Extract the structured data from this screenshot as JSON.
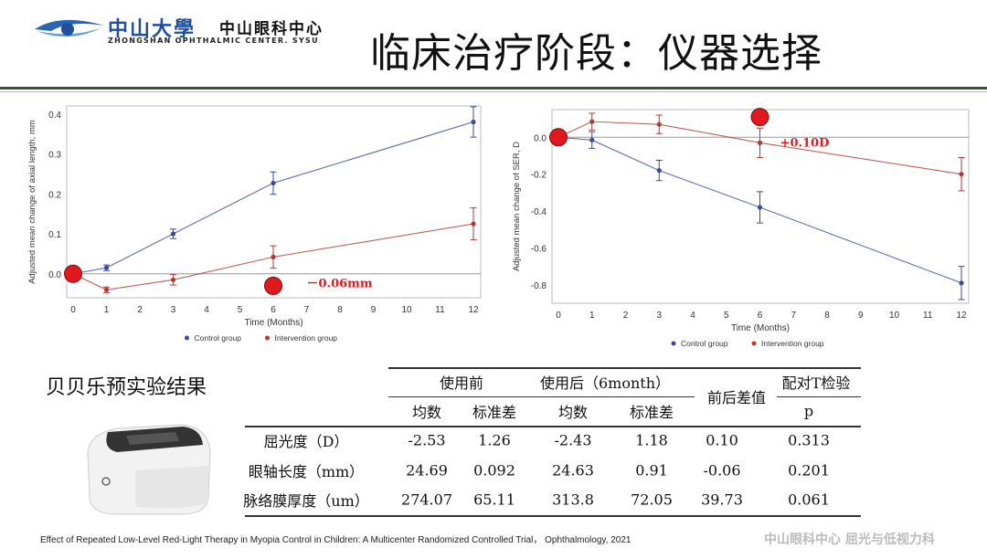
{
  "header": {
    "logo_cn": "中山大學",
    "logo_cn2": "中山眼科中心",
    "logo_en": "ZHONGSHAN OPHTHALMIC CENTER. SYSU",
    "title": "临床治疗阶段：仪器选择"
  },
  "colors": {
    "control": "#3b4a9a",
    "intervention": "#b03a32",
    "highlight": "#e0191f",
    "rule": "#2f5d2f"
  },
  "chart_data": [
    {
      "type": "line",
      "ylabel": "Adjusted mean change of axial length, mm",
      "xlabel": "Time (Months)",
      "xlim": [
        0,
        12
      ],
      "ylim": [
        -0.06,
        0.42
      ],
      "xticks": [
        0,
        1,
        2,
        3,
        4,
        5,
        6,
        7,
        8,
        9,
        10,
        11,
        12
      ],
      "yticks": [
        0.0,
        0.1,
        0.2,
        0.3,
        0.4
      ],
      "ytick_labels": [
        "0.0",
        "0.1",
        "0.2",
        "0.3",
        "0.4"
      ],
      "x": [
        0,
        1,
        3,
        6,
        12
      ],
      "legend_placement": "bottom",
      "reference_line": 0,
      "series": [
        {
          "name": "Control group",
          "color": "#3b4a9a",
          "values": [
            0,
            0.015,
            0.1,
            0.227,
            0.38
          ],
          "errors": [
            0,
            0.007,
            0.012,
            0.028,
            0.038
          ]
        },
        {
          "name": "Intervention group",
          "color": "#b03a32",
          "values": [
            0,
            -0.04,
            -0.015,
            0.042,
            0.125
          ],
          "errors": [
            0,
            0.007,
            0.013,
            0.028,
            0.04
          ]
        }
      ],
      "markers": [
        {
          "x": 0,
          "y": 0
        },
        {
          "x": 6,
          "y": -0.03
        }
      ],
      "annotation": {
        "text": "－0.06mm",
        "x": 7,
        "y": -0.025
      }
    },
    {
      "type": "line",
      "ylabel": "Adjusted mean change of SER, D",
      "xlabel": "Time (Months)",
      "xlim": [
        0,
        12
      ],
      "ylim": [
        -0.9,
        0.15
      ],
      "xticks": [
        0,
        1,
        2,
        3,
        4,
        5,
        6,
        7,
        8,
        9,
        10,
        11,
        12
      ],
      "yticks": [
        0.0,
        -0.2,
        -0.4,
        -0.6,
        -0.8
      ],
      "ytick_labels": [
        "0.0",
        "-0.2",
        "-0.4",
        "-0.6",
        "-0.8"
      ],
      "x": [
        0,
        1,
        3,
        6,
        12
      ],
      "legend_placement": "bottom",
      "reference_line": 0,
      "series": [
        {
          "name": "Control group",
          "color": "#3b4a9a",
          "values": [
            0,
            -0.015,
            -0.18,
            -0.38,
            -0.79
          ],
          "errors": [
            0,
            0.045,
            0.055,
            0.085,
            0.09
          ]
        },
        {
          "name": "Intervention group",
          "color": "#b03a32",
          "values": [
            0,
            0.085,
            0.07,
            -0.03,
            -0.2
          ],
          "errors": [
            0,
            0.045,
            0.05,
            0.08,
            0.09
          ]
        }
      ],
      "markers": [
        {
          "x": 0,
          "y": 0
        },
        {
          "x": 6,
          "y": 0.11
        }
      ],
      "annotation": {
        "text": "+0.10D",
        "x": 6.6,
        "y": -0.03
      }
    }
  ],
  "subtitle": "贝贝乐预实验结果",
  "table": {
    "group_headers": [
      "使用前",
      "使用后（6month）",
      "前后差值",
      "配对T检验"
    ],
    "sub_headers": [
      "均数",
      "标准差",
      "均数",
      "标准差",
      "p"
    ],
    "rows": [
      [
        "屈光度（D）",
        "-2.53",
        "1.26",
        "-2.43",
        "1.18",
        "0.10",
        "0.313"
      ],
      [
        "眼轴长度（mm）",
        "24.69",
        "0.092",
        "24.63",
        "0.91",
        "-0.06",
        "0.201"
      ],
      [
        "脉络膜厚度（um）",
        "274.07",
        "65.11",
        "313.8",
        "72.05",
        "39.73",
        "0.061"
      ]
    ]
  },
  "footer": "Effect of Repeated Low-Level Red-Light Therapy in Myopia Control in Children: A Multicenter Randomized Controlled Trial， Ophthalmology, 2021",
  "watermark": "中山眼科中心 屈光与低视力科"
}
